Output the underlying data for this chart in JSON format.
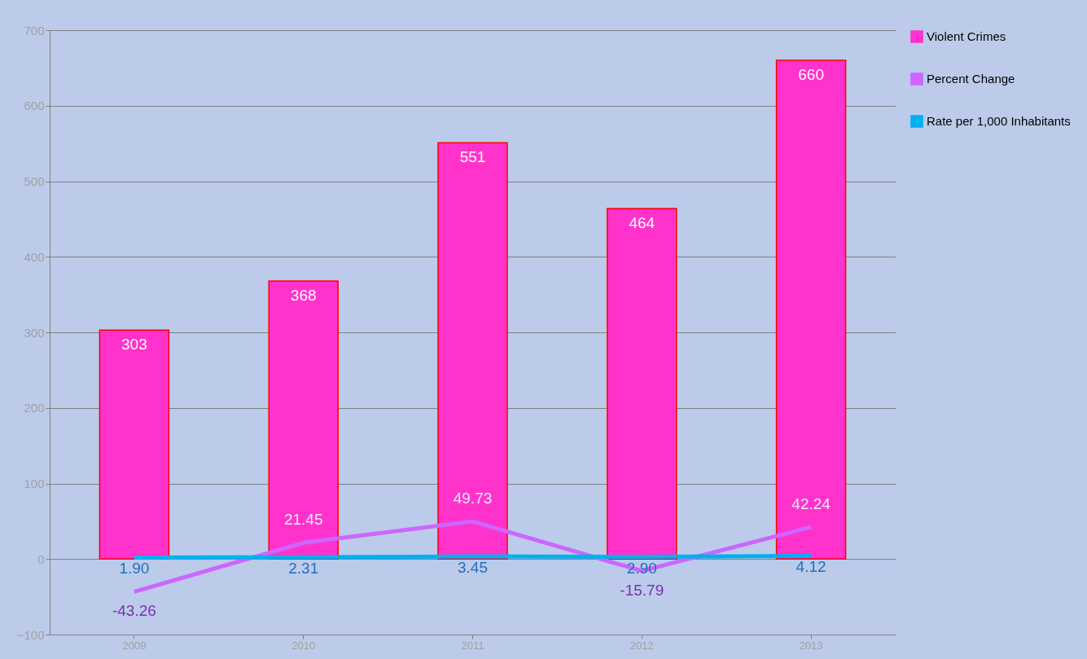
{
  "chart_data": {
    "type": "bar",
    "categories": [
      "2009",
      "2010",
      "2011",
      "2012",
      "2013"
    ],
    "series": [
      {
        "name": "Violent Crimes",
        "color": "#ff33cc",
        "values": [
          303,
          368,
          551,
          464,
          660
        ],
        "value_labels": [
          "303",
          "368",
          "551",
          "464",
          "660"
        ]
      },
      {
        "name": "Percent Change",
        "type": "line",
        "color": "#cc66ff",
        "values": [
          -43.26,
          21.45,
          49.73,
          -15.79,
          42.24
        ],
        "value_labels": [
          "-43.26",
          "21.45",
          "49.73",
          "-15.79",
          "42.24"
        ]
      },
      {
        "name": "Rate per 1,000 Inhabitants",
        "type": "line",
        "color": "#00b0f0",
        "values": [
          1.9,
          2.31,
          3.45,
          2.9,
          4.12
        ],
        "value_labels": [
          "1.90",
          "2.31",
          "3.45",
          "2.90",
          "4.12"
        ]
      }
    ],
    "ylim": [
      -100,
      700
    ],
    "yticks": [
      -100,
      0,
      100,
      200,
      300,
      400,
      500,
      600,
      700
    ],
    "grid": "y",
    "legend": "right"
  }
}
